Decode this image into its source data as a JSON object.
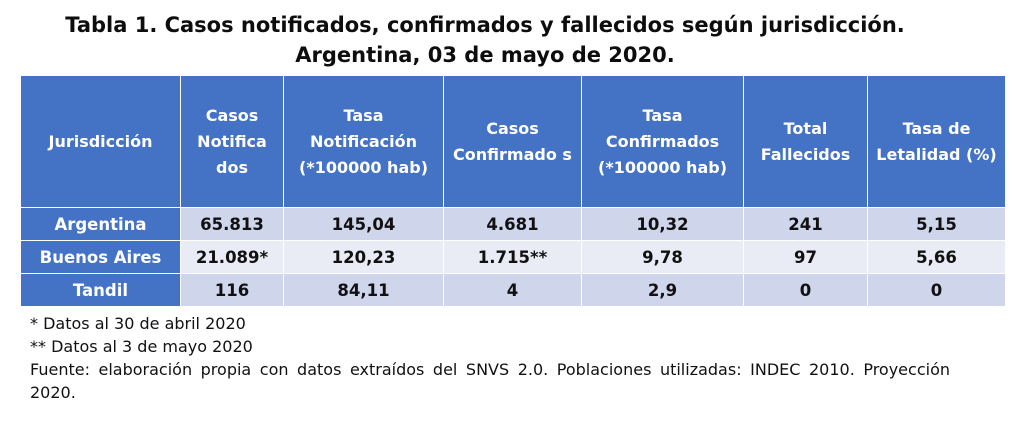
{
  "title": {
    "line1": "Tabla 1. Casos notificados, confirmados y fallecidos según jurisdicción.",
    "line2": "Argentina, 03 de mayo de 2020."
  },
  "table": {
    "headers": [
      "Jurisdicción",
      "Casos Notifica dos",
      "Tasa Notificación (*100000 hab)",
      "Casos Confirmado s",
      "Tasa Confirmados (*100000 hab)",
      "Total Fallecidos",
      "Tasa de Letalidad (%)"
    ],
    "rows": [
      {
        "jurisdiccion": "Argentina",
        "casos_notificados": "65.813",
        "tasa_notificacion": "145,04",
        "casos_confirmados": "4.681",
        "tasa_confirmados": "10,32",
        "total_fallecidos": "241",
        "tasa_letalidad": "5,15"
      },
      {
        "jurisdiccion": "Buenos Aires",
        "casos_notificados": "21.089*",
        "tasa_notificacion": "120,23",
        "casos_confirmados": "1.715**",
        "tasa_confirmados": "9,78",
        "total_fallecidos": "97",
        "tasa_letalidad": "5,66"
      },
      {
        "jurisdiccion": "Tandil",
        "casos_notificados": "116",
        "tasa_notificacion": "84,11",
        "casos_confirmados": "4",
        "tasa_confirmados": "2,9",
        "total_fallecidos": "0",
        "tasa_letalidad": "0"
      }
    ]
  },
  "notes": {
    "note1": "* Datos al 30 de abril 2020",
    "note2": "** Datos al 3 de mayo 2020",
    "source": "Fuente: elaboración propia con datos extraídos del SNVS 2.0. Poblaciones utilizadas: INDEC 2010. Proyección 2020."
  },
  "colors": {
    "header_bg": "#4472c4",
    "row_dark": "#cfd5ea",
    "row_light": "#e9ebf5"
  }
}
